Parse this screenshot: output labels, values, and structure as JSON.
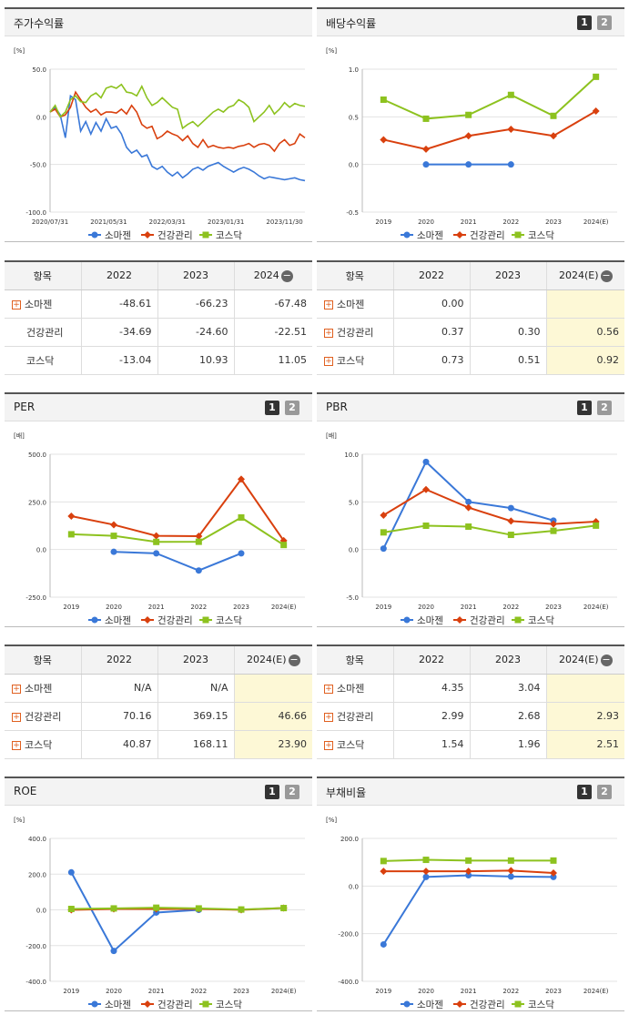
{
  "legend": [
    "소마젠",
    "건강관리",
    "코스닥"
  ],
  "colors": {
    "s1": "#3a78d8",
    "s2": "#d9400e",
    "s3": "#8dc21f"
  },
  "page_buttons": [
    "1",
    "2"
  ],
  "charts": [
    {
      "title": "주가수익률",
      "unit": "[%]",
      "type": "line",
      "paged": false,
      "chart_data": {
        "type": "line",
        "x_ticks": [
          "2020/07/31",
          "2021/05/31",
          "2022/03/31",
          "2023/01/31",
          "2023/11/30"
        ],
        "y_ticks": [
          "50.0",
          "0.0",
          "-50.0",
          "-100.0"
        ],
        "ylim": [
          -100,
          50
        ],
        "series": [
          {
            "name": "소마젠",
            "values": [
              5,
              10,
              2,
              -22,
              22,
              18,
              -15,
              -5,
              -18,
              -6,
              -15,
              -2,
              -12,
              -10,
              -18,
              -32,
              -38,
              -35,
              -42,
              -40,
              -52,
              -55,
              -52,
              -58,
              -62,
              -58,
              -64,
              -60,
              -55,
              -53,
              -56,
              -52,
              -50,
              -48,
              -52,
              -55,
              -58,
              -55,
              -53,
              -55,
              -58,
              -62,
              -65,
              -63,
              -64,
              -65,
              -66,
              -65,
              -64,
              -66,
              -67
            ]
          },
          {
            "name": "건강관리",
            "values": [
              5,
              8,
              0,
              2,
              10,
              26,
              18,
              10,
              5,
              8,
              2,
              5,
              5,
              4,
              8,
              3,
              12,
              5,
              -8,
              -12,
              -10,
              -23,
              -20,
              -15,
              -18,
              -20,
              -25,
              -20,
              -28,
              -32,
              -24,
              -32,
              -30,
              -32,
              -33,
              -32,
              -33,
              -31,
              -30,
              -28,
              -32,
              -29,
              -28,
              -30,
              -36,
              -28,
              -24,
              -30,
              -28,
              -18,
              -22
            ]
          },
          {
            "name": "코스닥",
            "values": [
              5,
              12,
              0,
              5,
              18,
              22,
              16,
              15,
              22,
              25,
              20,
              30,
              32,
              30,
              34,
              26,
              25,
              22,
              32,
              20,
              12,
              15,
              20,
              15,
              10,
              8,
              -12,
              -8,
              -5,
              -10,
              -5,
              0,
              5,
              8,
              5,
              10,
              12,
              18,
              15,
              10,
              -5,
              0,
              5,
              12,
              3,
              8,
              15,
              10,
              14,
              12,
              11
            ]
          }
        ]
      }
    },
    {
      "title": "배당수익률",
      "unit": "[%]",
      "type": "line",
      "paged": true,
      "chart_data": {
        "type": "line",
        "categories": [
          "2019",
          "2020",
          "2021",
          "2022",
          "2023",
          "2024(E)"
        ],
        "y_ticks": [
          "1.0",
          "0.5",
          "0.0",
          "-0.5"
        ],
        "ylim": [
          -0.5,
          1.0
        ],
        "series": [
          {
            "name": "소마젠",
            "values": [
              null,
              0.0,
              0.0,
              0.0,
              null,
              null
            ]
          },
          {
            "name": "건강관리",
            "values": [
              0.26,
              0.16,
              0.3,
              0.37,
              0.3,
              0.56
            ]
          },
          {
            "name": "코스닥",
            "values": [
              0.68,
              0.48,
              0.52,
              0.73,
              0.51,
              0.92
            ]
          }
        ]
      }
    },
    {
      "title": "PER",
      "unit": "[배]",
      "type": "line",
      "paged": true,
      "chart_data": {
        "type": "line",
        "categories": [
          "2019",
          "2020",
          "2021",
          "2022",
          "2023",
          "2024(E)"
        ],
        "y_ticks": [
          "500.0",
          "250.0",
          "0.0",
          "-250.0"
        ],
        "ylim": [
          -250,
          500
        ],
        "series": [
          {
            "name": "소마젠",
            "values": [
              null,
              -12,
              -20,
              -110,
              -20,
              null
            ]
          },
          {
            "name": "건강관리",
            "values": [
              175,
              130,
              72,
              70.16,
              369.15,
              46.66
            ]
          },
          {
            "name": "코스닥",
            "values": [
              80,
              72,
              40,
              40.87,
              168.11,
              23.9
            ]
          }
        ]
      }
    },
    {
      "title": "PBR",
      "unit": "[배]",
      "type": "line",
      "paged": true,
      "chart_data": {
        "type": "line",
        "categories": [
          "2019",
          "2020",
          "2021",
          "2022",
          "2023",
          "2024(E)"
        ],
        "y_ticks": [
          "10.0",
          "5.0",
          "0.0",
          "-5.0"
        ],
        "ylim": [
          -5,
          10
        ],
        "series": [
          {
            "name": "소마젠",
            "values": [
              0.1,
              9.2,
              5.0,
              4.35,
              3.04,
              null
            ]
          },
          {
            "name": "건강관리",
            "values": [
              3.6,
              6.3,
              4.4,
              2.99,
              2.68,
              2.93
            ]
          },
          {
            "name": "코스닥",
            "values": [
              1.8,
              2.5,
              2.4,
              1.54,
              1.96,
              2.51
            ]
          }
        ]
      }
    },
    {
      "title": "ROE",
      "unit": "[%]",
      "type": "line",
      "paged": true,
      "chart_data": {
        "type": "line",
        "categories": [
          "2019",
          "2020",
          "2021",
          "2022",
          "2023",
          "2024(E)"
        ],
        "y_ticks": [
          "400.0",
          "200.0",
          "0.0",
          "-200.0",
          "-400.0"
        ],
        "ylim": [
          -400,
          400
        ],
        "series": [
          {
            "name": "소마젠",
            "values": [
              210,
              -230,
              -15,
              0,
              null,
              null
            ]
          },
          {
            "name": "건강관리",
            "values": [
              0,
              5,
              5,
              5,
              0,
              10
            ]
          },
          {
            "name": "코스닥",
            "values": [
              5,
              8,
              12,
              8,
              2,
              10
            ]
          }
        ]
      }
    },
    {
      "title": "부채비율",
      "unit": "[%]",
      "type": "line",
      "paged": true,
      "chart_data": {
        "type": "line",
        "categories": [
          "2019",
          "2020",
          "2021",
          "2022",
          "2023",
          "2024(E)"
        ],
        "y_ticks": [
          "200.0",
          "0.0",
          "-200.0",
          "-400.0"
        ],
        "ylim": [
          -400,
          200
        ],
        "series": [
          {
            "name": "소마젠",
            "values": [
              -245,
              38,
              45,
              40,
              38,
              null
            ]
          },
          {
            "name": "건강관리",
            "values": [
              62,
              62,
              62,
              65,
              55,
              null
            ]
          },
          {
            "name": "코스닥",
            "values": [
              105,
              110,
              107,
              107,
              107,
              null
            ]
          }
        ]
      }
    }
  ],
  "tables": [
    {
      "headers": [
        "항목",
        "2022",
        "2023",
        "2024"
      ],
      "last_header_estimate": false,
      "rows": [
        {
          "name": "소마젠",
          "plus": true,
          "cells": [
            "-48.61",
            "-66.23",
            "-67.48"
          ]
        },
        {
          "name": "건강관리",
          "plus": false,
          "cells": [
            "-34.69",
            "-24.60",
            "-22.51"
          ]
        },
        {
          "name": "코스닥",
          "plus": false,
          "cells": [
            "-13.04",
            "10.93",
            "11.05"
          ]
        }
      ]
    },
    {
      "headers": [
        "항목",
        "2022",
        "2023",
        "2024(E)"
      ],
      "last_header_estimate": true,
      "rows": [
        {
          "name": "소마젠",
          "plus": true,
          "cells": [
            "0.00",
            "",
            ""
          ]
        },
        {
          "name": "건강관리",
          "plus": true,
          "cells": [
            "0.37",
            "0.30",
            "0.56"
          ]
        },
        {
          "name": "코스닥",
          "plus": true,
          "cells": [
            "0.73",
            "0.51",
            "0.92"
          ]
        }
      ]
    },
    {
      "headers": [
        "항목",
        "2022",
        "2023",
        "2024(E)"
      ],
      "last_header_estimate": true,
      "rows": [
        {
          "name": "소마젠",
          "plus": true,
          "cells": [
            "N/A",
            "N/A",
            ""
          ]
        },
        {
          "name": "건강관리",
          "plus": true,
          "cells": [
            "70.16",
            "369.15",
            "46.66"
          ]
        },
        {
          "name": "코스닥",
          "plus": true,
          "cells": [
            "40.87",
            "168.11",
            "23.90"
          ]
        }
      ]
    },
    {
      "headers": [
        "항목",
        "2022",
        "2023",
        "2024(E)"
      ],
      "last_header_estimate": true,
      "rows": [
        {
          "name": "소마젠",
          "plus": true,
          "cells": [
            "4.35",
            "3.04",
            ""
          ]
        },
        {
          "name": "건강관리",
          "plus": true,
          "cells": [
            "2.99",
            "2.68",
            "2.93"
          ]
        },
        {
          "name": "코스닥",
          "plus": true,
          "cells": [
            "1.54",
            "1.96",
            "2.51"
          ]
        }
      ]
    }
  ]
}
